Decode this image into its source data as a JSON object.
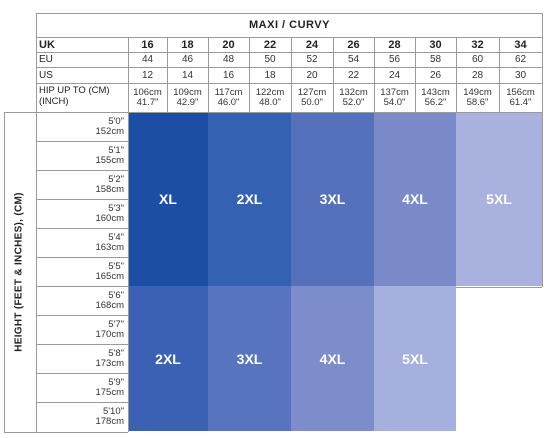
{
  "title": "MAXI / CURVY",
  "row_labels": {
    "uk": "UK",
    "eu": "EU",
    "us": "US",
    "hip_line1": "HIP UP TO (CM)",
    "hip_line2": "(INCH)"
  },
  "vertical_label": "HEIGHT (FEET & INCHES), (CM)",
  "uk": [
    "16",
    "18",
    "20",
    "22",
    "24",
    "26",
    "28",
    "30",
    "32",
    "34"
  ],
  "eu": [
    "44",
    "46",
    "48",
    "50",
    "52",
    "54",
    "56",
    "58",
    "60",
    "62"
  ],
  "us": [
    "12",
    "14",
    "16",
    "18",
    "20",
    "22",
    "24",
    "26",
    "28",
    "30"
  ],
  "hip_cm": [
    "106cm",
    "109cm",
    "117cm",
    "122cm",
    "127cm",
    "132cm",
    "137cm",
    "143cm",
    "149cm",
    "156cm"
  ],
  "hip_inch": [
    "41.7\"",
    "42.9\"",
    "46.0\"",
    "48.0\"",
    "50.0\"",
    "52.0\"",
    "54.0\"",
    "56.2\"",
    "58.6\"",
    "61.4\""
  ],
  "heights": [
    {
      "ft": "5'0\"",
      "cm": "152cm"
    },
    {
      "ft": "5'1\"",
      "cm": "155cm"
    },
    {
      "ft": "5'2\"",
      "cm": "158cm"
    },
    {
      "ft": "5'3\"",
      "cm": "160cm"
    },
    {
      "ft": "5'4\"",
      "cm": "163cm"
    },
    {
      "ft": "5'5\"",
      "cm": "165cm"
    },
    {
      "ft": "5'6\"",
      "cm": "168cm"
    },
    {
      "ft": "5'7\"",
      "cm": "170cm"
    },
    {
      "ft": "5'8\"",
      "cm": "173cm"
    },
    {
      "ft": "5'9\"",
      "cm": "175cm"
    },
    {
      "ft": "5'10\"",
      "cm": "178cm"
    }
  ],
  "sizes_short": [
    "XL",
    "2XL",
    "3XL",
    "4XL",
    "5XL"
  ],
  "sizes_tall": [
    "2XL",
    "3XL",
    "4XL",
    "5XL"
  ],
  "colors": {
    "short": [
      "#1c4ea3",
      "#3461b1",
      "#5571bb",
      "#7b8bca",
      "#a9b2df"
    ],
    "tall": [
      "#3a61b3",
      "#5874bf",
      "#7d8dcc",
      "#a6b0df"
    ]
  }
}
